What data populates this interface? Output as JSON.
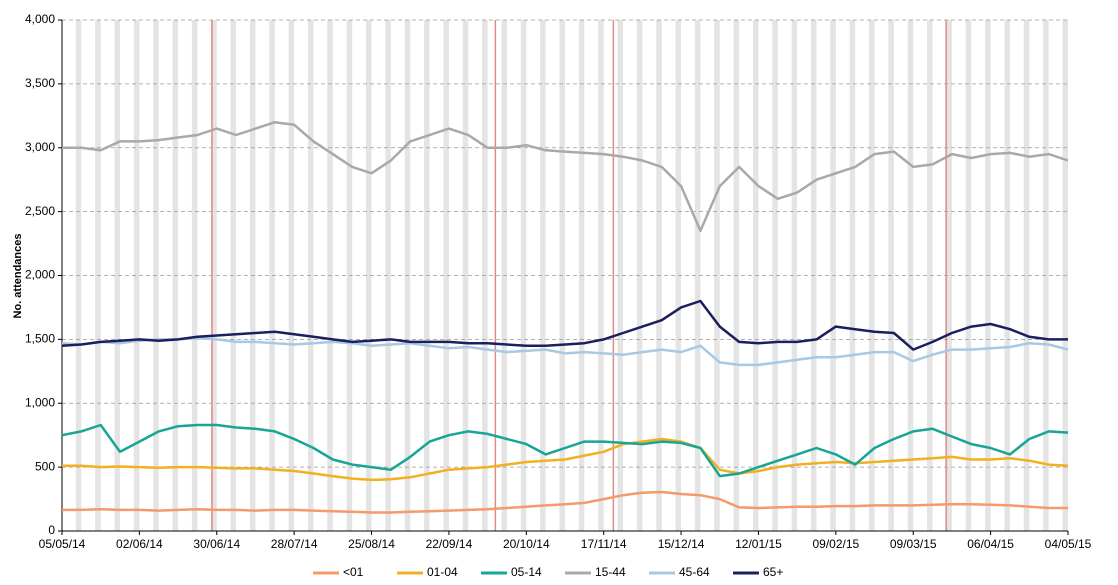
{
  "chart_data": {
    "type": "line",
    "y_label": "No. attendances",
    "categories": [
      "05/05/14",
      null,
      null,
      null,
      "02/06/14",
      null,
      null,
      null,
      "30/06/14",
      null,
      null,
      null,
      "28/07/14",
      null,
      null,
      null,
      "25/08/14",
      null,
      null,
      null,
      "22/09/14",
      null,
      null,
      null,
      "20/10/14",
      null,
      null,
      null,
      "17/11/14",
      null,
      null,
      null,
      "15/12/14",
      null,
      null,
      null,
      "12/01/15",
      null,
      null,
      null,
      "09/02/15",
      null,
      null,
      null,
      "09/03/15",
      null,
      null,
      null,
      "06/04/15",
      null,
      null,
      null,
      "04/05/15"
    ],
    "ylim": [
      0,
      4000
    ],
    "yticks": [
      0,
      500,
      {
        "value": 1000,
        "label": "1,000"
      },
      {
        "value": 1500,
        "label": "1,500"
      },
      {
        "value": 2000,
        "label": "2,000"
      },
      {
        "value": 2500,
        "label": "2,500"
      },
      {
        "value": 3000,
        "label": "3,000"
      },
      {
        "value": 3500,
        "label": "3,500"
      },
      {
        "value": 4000,
        "label": "4,000"
      }
    ],
    "grid": true,
    "legend": "bottom",
    "series": [
      {
        "name": "<01",
        "color": "#f59a68",
        "values": [
          165,
          165,
          170,
          165,
          165,
          160,
          165,
          170,
          165,
          165,
          160,
          165,
          165,
          160,
          155,
          150,
          145,
          145,
          150,
          155,
          160,
          165,
          170,
          180,
          190,
          200,
          210,
          220,
          250,
          280,
          300,
          305,
          290,
          280,
          250,
          185,
          180,
          185,
          190,
          190,
          195,
          195,
          200,
          200,
          200,
          205,
          210,
          210,
          205,
          200,
          190,
          180,
          180
        ]
      },
      {
        "name": "01-04",
        "color": "#f0b020",
        "values": [
          510,
          510,
          500,
          505,
          500,
          495,
          500,
          500,
          495,
          490,
          490,
          480,
          470,
          450,
          430,
          410,
          400,
          405,
          420,
          450,
          480,
          490,
          500,
          520,
          540,
          550,
          560,
          590,
          620,
          680,
          700,
          720,
          700,
          650,
          480,
          450,
          470,
          500,
          520,
          530,
          540,
          530,
          540,
          550,
          560,
          570,
          580,
          560,
          560,
          570,
          550,
          520,
          510
        ]
      },
      {
        "name": "05-14",
        "color": "#17a595",
        "values": [
          750,
          780,
          830,
          620,
          700,
          780,
          820,
          830,
          830,
          810,
          800,
          780,
          720,
          650,
          560,
          520,
          500,
          480,
          580,
          700,
          750,
          780,
          760,
          720,
          680,
          600,
          650,
          700,
          700,
          690,
          680,
          700,
          690,
          650,
          430,
          450,
          500,
          550,
          600,
          650,
          600,
          520,
          650,
          720,
          780,
          800,
          740,
          680,
          650,
          600,
          720,
          780,
          770
        ]
      },
      {
        "name": "15-44",
        "color": "#a9a9a9",
        "values": [
          3000,
          3000,
          2980,
          3050,
          3050,
          3060,
          3080,
          3100,
          3150,
          3100,
          3150,
          3200,
          3180,
          3050,
          2950,
          2850,
          2800,
          2900,
          3050,
          3100,
          3150,
          3100,
          3000,
          3000,
          3020,
          2980,
          2970,
          2960,
          2950,
          2930,
          2900,
          2850,
          2700,
          2350,
          2700,
          2850,
          2700,
          2600,
          2650,
          2750,
          2800,
          2850,
          2950,
          2970,
          2850,
          2870,
          2950,
          2920,
          2950,
          2960,
          2930,
          2950,
          2900
        ]
      },
      {
        "name": "45-64",
        "color": "#a8c9e2",
        "values": [
          1470,
          1460,
          1480,
          1470,
          1490,
          1500,
          1500,
          1510,
          1500,
          1480,
          1480,
          1470,
          1460,
          1470,
          1480,
          1470,
          1450,
          1460,
          1470,
          1450,
          1430,
          1440,
          1420,
          1400,
          1410,
          1420,
          1390,
          1400,
          1390,
          1380,
          1400,
          1420,
          1400,
          1450,
          1320,
          1300,
          1300,
          1320,
          1340,
          1360,
          1360,
          1380,
          1400,
          1400,
          1330,
          1380,
          1420,
          1420,
          1430,
          1440,
          1470,
          1460,
          1420
        ]
      },
      {
        "name": "65+",
        "color": "#1c1f5e",
        "values": [
          1450,
          1460,
          1480,
          1490,
          1500,
          1490,
          1500,
          1520,
          1530,
          1540,
          1550,
          1560,
          1540,
          1520,
          1500,
          1480,
          1490,
          1500,
          1480,
          1480,
          1480,
          1470,
          1470,
          1460,
          1450,
          1450,
          1460,
          1470,
          1500,
          1550,
          1600,
          1650,
          1750,
          1800,
          1600,
          1480,
          1470,
          1480,
          1480,
          1500,
          1600,
          1580,
          1560,
          1550,
          1420,
          1480,
          1550,
          1600,
          1620,
          1580,
          1520,
          1500,
          1500
        ]
      }
    ]
  }
}
